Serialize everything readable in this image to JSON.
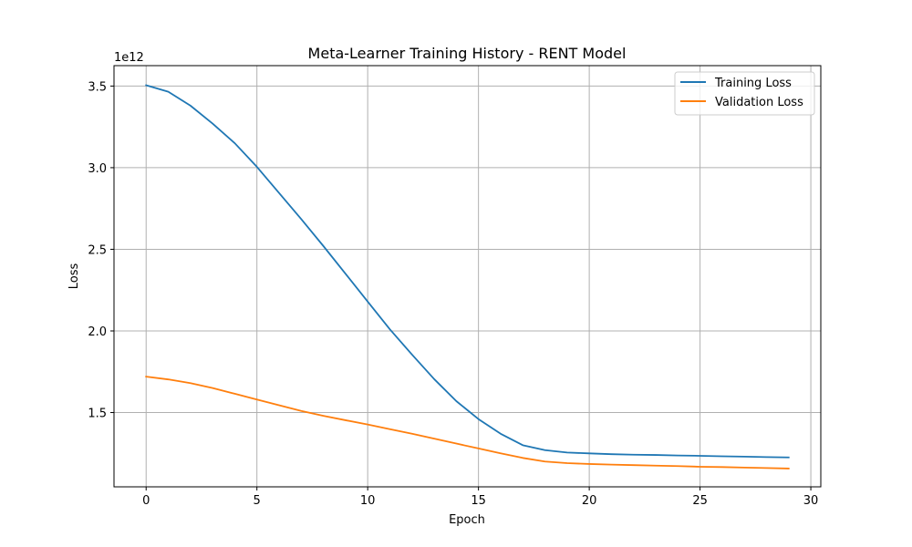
{
  "chart_data": {
    "type": "line",
    "title": "Meta-Learner Training History - RENT Model",
    "xlabel": "Epoch",
    "ylabel": "Loss",
    "y_offset_label": "1e12",
    "xlim": [
      -1.45,
      30.45
    ],
    "ylim": [
      1.045,
      3.625
    ],
    "x_ticks": [
      0,
      5,
      10,
      15,
      20,
      25,
      30
    ],
    "x_tick_labels": [
      "0",
      "5",
      "10",
      "15",
      "20",
      "25",
      "30"
    ],
    "y_ticks": [
      1.5,
      2.0,
      2.5,
      3.0,
      3.5
    ],
    "y_tick_labels": [
      "1.5",
      "2.0",
      "2.5",
      "3.0",
      "3.5"
    ],
    "grid": true,
    "legend_position": "upper right",
    "x": [
      0,
      1,
      2,
      3,
      4,
      5,
      6,
      7,
      8,
      9,
      10,
      11,
      12,
      13,
      14,
      15,
      16,
      17,
      18,
      19,
      20,
      21,
      22,
      23,
      24,
      25,
      26,
      27,
      28,
      29
    ],
    "series": [
      {
        "name": "Training Loss",
        "color": "#1f77b4",
        "values": [
          3.505,
          3.465,
          3.38,
          3.27,
          3.15,
          3.005,
          2.845,
          2.685,
          2.52,
          2.35,
          2.18,
          2.01,
          1.855,
          1.705,
          1.57,
          1.46,
          1.37,
          1.3,
          1.27,
          1.255,
          1.25,
          1.245,
          1.242,
          1.24,
          1.237,
          1.235,
          1.232,
          1.23,
          1.227,
          1.225
        ]
      },
      {
        "name": "Validation Loss",
        "color": "#ff7f0e",
        "values": [
          1.72,
          1.703,
          1.68,
          1.65,
          1.615,
          1.58,
          1.545,
          1.51,
          1.48,
          1.453,
          1.427,
          1.398,
          1.37,
          1.34,
          1.31,
          1.28,
          1.25,
          1.222,
          1.2,
          1.19,
          1.185,
          1.181,
          1.178,
          1.175,
          1.172,
          1.168,
          1.166,
          1.163,
          1.16,
          1.157
        ]
      }
    ]
  }
}
